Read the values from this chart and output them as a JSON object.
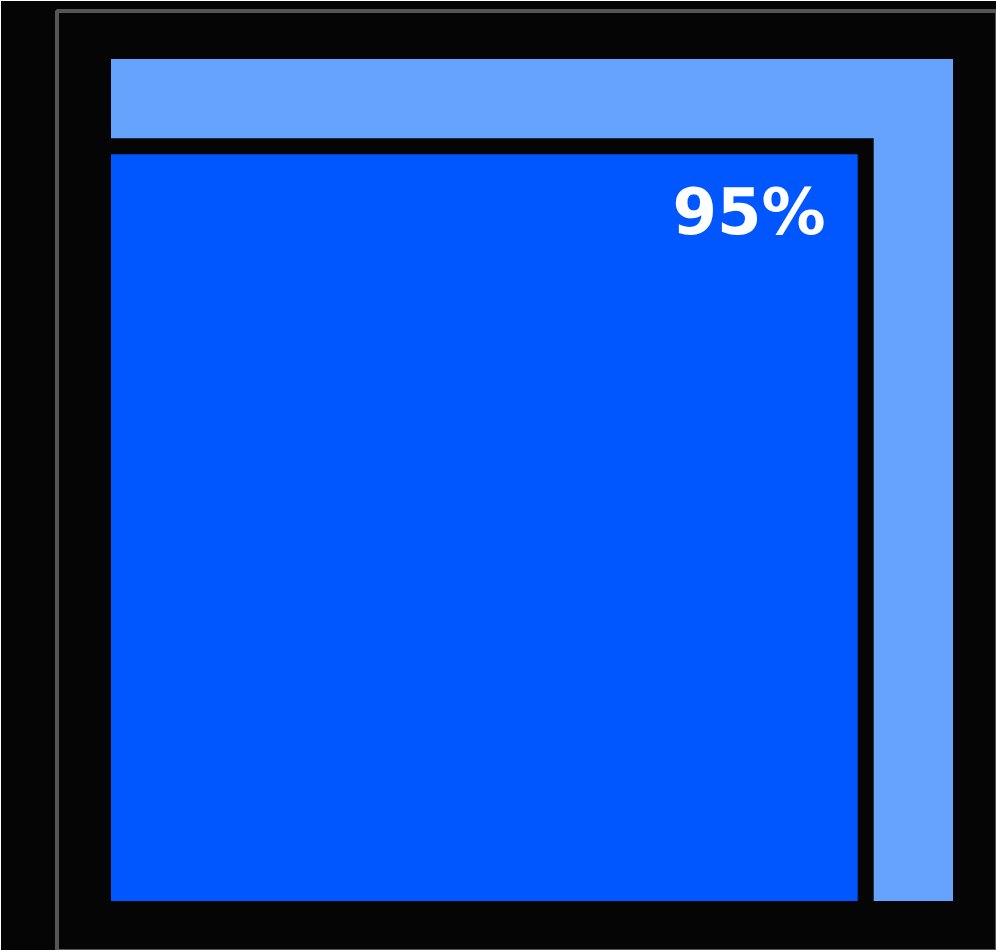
{
  "chart_data": {
    "type": "other",
    "categories": [
      null
    ],
    "values": [
      95
    ],
    "colors": [
      "#0057ff"
    ],
    "value_labels": [
      "95%"
    ]
  }
}
